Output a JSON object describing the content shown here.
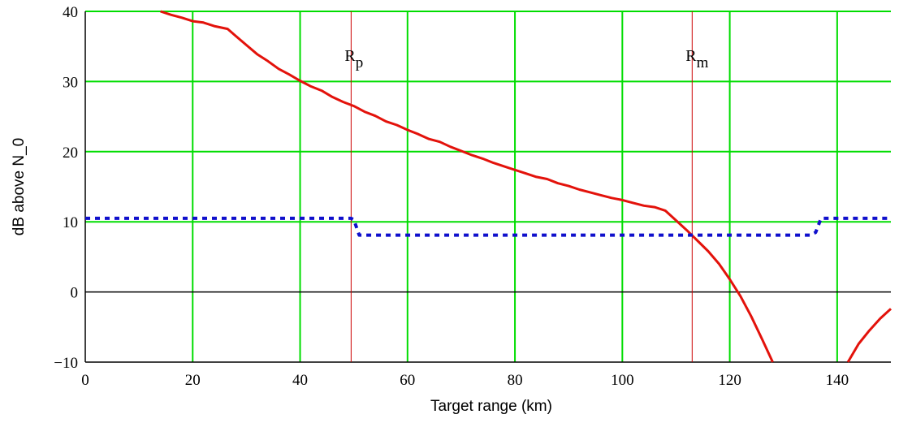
{
  "chart_data": {
    "type": "line",
    "xlabel": "Target range (km)",
    "ylabel": "dB above N_0",
    "xlim": [
      0,
      150
    ],
    "ylim": [
      -10,
      40
    ],
    "x_ticks": [
      "0",
      "20",
      "40",
      "60",
      "80",
      "100",
      "120",
      "140"
    ],
    "y_ticks": [
      "40",
      "30",
      "20",
      "10",
      "0",
      "−10"
    ],
    "x_tick_values": [
      0,
      20,
      40,
      60,
      80,
      100,
      120,
      140
    ],
    "y_tick_values": [
      40,
      30,
      20,
      10,
      0,
      -10
    ],
    "x_grid": [
      20,
      40,
      60,
      80,
      100,
      120,
      140
    ],
    "y_grid": [
      10,
      20,
      30,
      40
    ],
    "grid": true,
    "grid_color": "#00dd00",
    "zero_line_color": "#000000",
    "series": [
      {
        "style": "solid",
        "color": "#e3120b",
        "x": [
          14,
          16,
          18,
          20,
          22,
          24,
          26.5,
          28,
          30,
          32,
          34,
          36,
          38,
          40,
          42,
          44,
          46,
          48,
          50,
          52,
          54,
          56,
          58,
          60,
          62,
          64,
          66,
          68,
          70,
          72,
          74,
          76,
          78,
          80,
          82,
          84,
          86,
          88,
          90,
          92,
          94,
          96,
          98,
          100,
          102,
          104,
          106,
          108,
          110,
          112,
          114,
          116,
          118,
          120,
          122,
          124,
          126,
          128
        ],
        "y": [
          40,
          39.5,
          39.1,
          38.6,
          38.4,
          37.9,
          37.5,
          36.5,
          35.2,
          33.9,
          32.9,
          31.8,
          31,
          30.1,
          29.3,
          28.7,
          27.8,
          27.1,
          26.5,
          25.7,
          25.1,
          24.3,
          23.8,
          23.1,
          22.5,
          21.8,
          21.4,
          20.7,
          20.1,
          19.5,
          19,
          18.4,
          17.9,
          17.4,
          16.9,
          16.4,
          16.1,
          15.5,
          15.1,
          14.6,
          14.2,
          13.8,
          13.4,
          13.1,
          12.7,
          12.3,
          12.1,
          11.6,
          10.2,
          8.8,
          7.3,
          5.8,
          4,
          1.8,
          -0.6,
          -3.5,
          -6.7,
          -10
        ]
      },
      {
        "style": "solid",
        "color": "#e3120b",
        "x": [
          142,
          144,
          146,
          148,
          150
        ],
        "y": [
          -10,
          -7.4,
          -5.5,
          -3.8,
          -2.4
        ]
      },
      {
        "style": "dotted",
        "color": "#1010cc",
        "x": [
          0,
          49.5,
          50,
          51,
          135,
          136,
          137,
          150
        ],
        "y": [
          10.5,
          10.5,
          10.3,
          8.1,
          8.1,
          8.5,
          10.5,
          10.5
        ]
      }
    ],
    "vlines": [
      {
        "x": 49.5,
        "label": "R",
        "sub": "p",
        "color": "#cc0000"
      },
      {
        "x": 113,
        "label": "R",
        "sub": "m",
        "color": "#cc0000"
      }
    ]
  }
}
